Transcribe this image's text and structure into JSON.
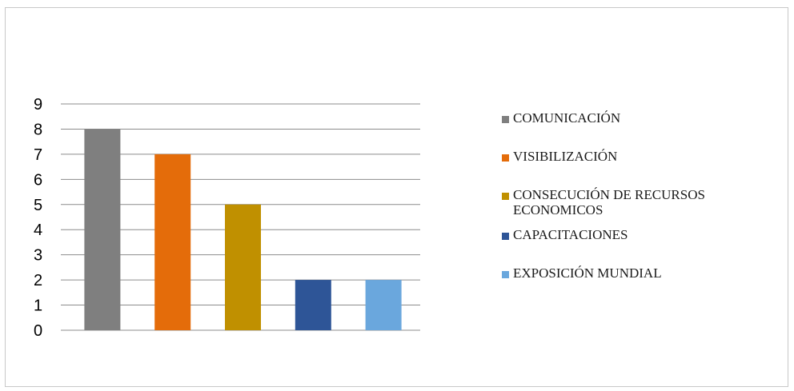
{
  "chart_data": {
    "type": "bar",
    "title": "",
    "xlabel": "",
    "ylabel": "",
    "ylim": [
      0,
      9
    ],
    "yticks": [
      "0",
      "1",
      "2",
      "3",
      "4",
      "5",
      "6",
      "7",
      "8",
      "9"
    ],
    "grid": true,
    "legend_position": "right",
    "categories": [
      "COMUNICACIÓN",
      "VISIBILIZACIÓN",
      "CONSECUCIÓN DE RECURSOS ECONOMICOS",
      "CAPACITACIONES",
      "EXPOSICIÓN MUNDIAL"
    ],
    "values": [
      8,
      7,
      5,
      2,
      2
    ],
    "colors": [
      "#7f7f7f",
      "#e46c0a",
      "#c09000",
      "#2e5597",
      "#6aa7dd"
    ]
  }
}
